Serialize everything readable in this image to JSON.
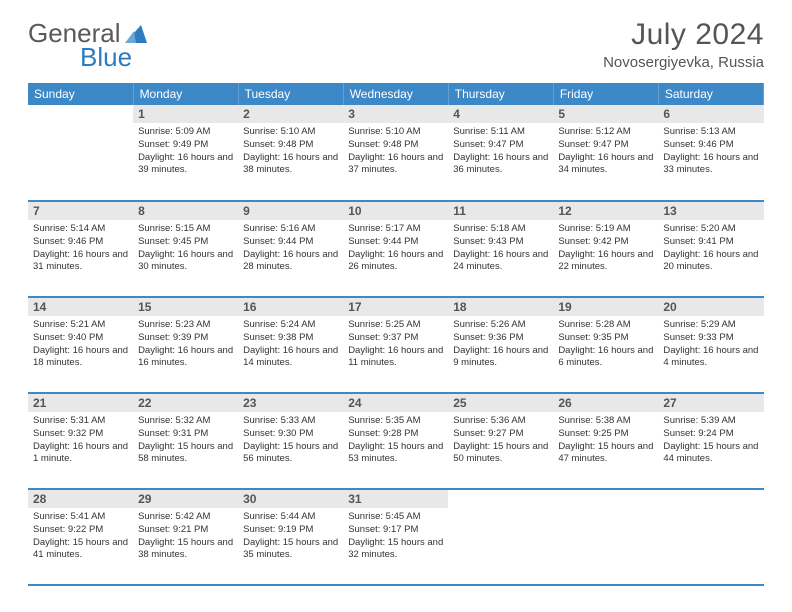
{
  "logo": {
    "text1": "General",
    "text2": "Blue"
  },
  "title": "July 2024",
  "location": "Novosergiyevka, Russia",
  "colors": {
    "header_bg": "#3d88c7",
    "daynum_bg": "#e8e8e8",
    "border": "#3d88c7",
    "logo_gray": "#5a5a5a",
    "logo_blue": "#2e7cc0",
    "title_gray": "#555555"
  },
  "day_headers": [
    "Sunday",
    "Monday",
    "Tuesday",
    "Wednesday",
    "Thursday",
    "Friday",
    "Saturday"
  ],
  "weeks": [
    [
      {
        "empty": true
      },
      {
        "day": "1",
        "sunrise": "5:09 AM",
        "sunset": "9:49 PM",
        "daylight": "16 hours and 39 minutes."
      },
      {
        "day": "2",
        "sunrise": "5:10 AM",
        "sunset": "9:48 PM",
        "daylight": "16 hours and 38 minutes."
      },
      {
        "day": "3",
        "sunrise": "5:10 AM",
        "sunset": "9:48 PM",
        "daylight": "16 hours and 37 minutes."
      },
      {
        "day": "4",
        "sunrise": "5:11 AM",
        "sunset": "9:47 PM",
        "daylight": "16 hours and 36 minutes."
      },
      {
        "day": "5",
        "sunrise": "5:12 AM",
        "sunset": "9:47 PM",
        "daylight": "16 hours and 34 minutes."
      },
      {
        "day": "6",
        "sunrise": "5:13 AM",
        "sunset": "9:46 PM",
        "daylight": "16 hours and 33 minutes."
      }
    ],
    [
      {
        "day": "7",
        "sunrise": "5:14 AM",
        "sunset": "9:46 PM",
        "daylight": "16 hours and 31 minutes."
      },
      {
        "day": "8",
        "sunrise": "5:15 AM",
        "sunset": "9:45 PM",
        "daylight": "16 hours and 30 minutes."
      },
      {
        "day": "9",
        "sunrise": "5:16 AM",
        "sunset": "9:44 PM",
        "daylight": "16 hours and 28 minutes."
      },
      {
        "day": "10",
        "sunrise": "5:17 AM",
        "sunset": "9:44 PM",
        "daylight": "16 hours and 26 minutes."
      },
      {
        "day": "11",
        "sunrise": "5:18 AM",
        "sunset": "9:43 PM",
        "daylight": "16 hours and 24 minutes."
      },
      {
        "day": "12",
        "sunrise": "5:19 AM",
        "sunset": "9:42 PM",
        "daylight": "16 hours and 22 minutes."
      },
      {
        "day": "13",
        "sunrise": "5:20 AM",
        "sunset": "9:41 PM",
        "daylight": "16 hours and 20 minutes."
      }
    ],
    [
      {
        "day": "14",
        "sunrise": "5:21 AM",
        "sunset": "9:40 PM",
        "daylight": "16 hours and 18 minutes."
      },
      {
        "day": "15",
        "sunrise": "5:23 AM",
        "sunset": "9:39 PM",
        "daylight": "16 hours and 16 minutes."
      },
      {
        "day": "16",
        "sunrise": "5:24 AM",
        "sunset": "9:38 PM",
        "daylight": "16 hours and 14 minutes."
      },
      {
        "day": "17",
        "sunrise": "5:25 AM",
        "sunset": "9:37 PM",
        "daylight": "16 hours and 11 minutes."
      },
      {
        "day": "18",
        "sunrise": "5:26 AM",
        "sunset": "9:36 PM",
        "daylight": "16 hours and 9 minutes."
      },
      {
        "day": "19",
        "sunrise": "5:28 AM",
        "sunset": "9:35 PM",
        "daylight": "16 hours and 6 minutes."
      },
      {
        "day": "20",
        "sunrise": "5:29 AM",
        "sunset": "9:33 PM",
        "daylight": "16 hours and 4 minutes."
      }
    ],
    [
      {
        "day": "21",
        "sunrise": "5:31 AM",
        "sunset": "9:32 PM",
        "daylight": "16 hours and 1 minute."
      },
      {
        "day": "22",
        "sunrise": "5:32 AM",
        "sunset": "9:31 PM",
        "daylight": "15 hours and 58 minutes."
      },
      {
        "day": "23",
        "sunrise": "5:33 AM",
        "sunset": "9:30 PM",
        "daylight": "15 hours and 56 minutes."
      },
      {
        "day": "24",
        "sunrise": "5:35 AM",
        "sunset": "9:28 PM",
        "daylight": "15 hours and 53 minutes."
      },
      {
        "day": "25",
        "sunrise": "5:36 AM",
        "sunset": "9:27 PM",
        "daylight": "15 hours and 50 minutes."
      },
      {
        "day": "26",
        "sunrise": "5:38 AM",
        "sunset": "9:25 PM",
        "daylight": "15 hours and 47 minutes."
      },
      {
        "day": "27",
        "sunrise": "5:39 AM",
        "sunset": "9:24 PM",
        "daylight": "15 hours and 44 minutes."
      }
    ],
    [
      {
        "day": "28",
        "sunrise": "5:41 AM",
        "sunset": "9:22 PM",
        "daylight": "15 hours and 41 minutes."
      },
      {
        "day": "29",
        "sunrise": "5:42 AM",
        "sunset": "9:21 PM",
        "daylight": "15 hours and 38 minutes."
      },
      {
        "day": "30",
        "sunrise": "5:44 AM",
        "sunset": "9:19 PM",
        "daylight": "15 hours and 35 minutes."
      },
      {
        "day": "31",
        "sunrise": "5:45 AM",
        "sunset": "9:17 PM",
        "daylight": "15 hours and 32 minutes."
      },
      {
        "empty": true
      },
      {
        "empty": true
      },
      {
        "empty": true
      }
    ]
  ],
  "labels": {
    "sunrise": "Sunrise:",
    "sunset": "Sunset:",
    "daylight": "Daylight:"
  }
}
